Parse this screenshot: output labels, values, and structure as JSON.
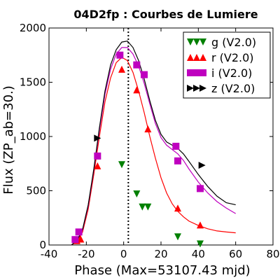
{
  "chart_data": {
    "type": "scatter",
    "title": "04D2fp : Courbes de Lumiere",
    "xlabel": "Phase (Max=53107.43 mjd)",
    "ylabel": "Flux (ZP_ab=30.)",
    "xlim": [
      -40,
      80
    ],
    "ylim": [
      0,
      2000
    ],
    "xticks": [
      "-40",
      "-20",
      "0",
      "20",
      "40",
      "60",
      "80"
    ],
    "xtick_values": [
      -40,
      -20,
      0,
      20,
      40,
      60,
      80
    ],
    "yticks": [
      "0",
      "500",
      "1000",
      "1500",
      "2000"
    ],
    "ytick_values": [
      0,
      500,
      1000,
      1500,
      2000
    ],
    "grid": false,
    "legend_position": "top-right",
    "max_line_x": 2.5,
    "series": [
      {
        "name": "g (V2.0)",
        "marker": "triangle-down",
        "color": "#008000",
        "points": [
          [
            -1,
            740
          ],
          [
            7,
            470
          ],
          [
            10,
            350
          ],
          [
            13,
            350
          ],
          [
            29,
            75
          ],
          [
            41,
            10
          ]
        ],
        "curve": []
      },
      {
        "name": "r (V2.0)",
        "marker": "triangle-up",
        "color": "#ff0000",
        "points": [
          [
            -25,
            40
          ],
          [
            -23,
            55
          ],
          [
            -14,
            730
          ],
          [
            -1,
            1620
          ],
          [
            7,
            1430
          ],
          [
            13,
            1070
          ],
          [
            29,
            340
          ],
          [
            41,
            185
          ]
        ],
        "curve": [
          [
            -28,
            0
          ],
          [
            -25,
            30
          ],
          [
            -22,
            120
          ],
          [
            -19,
            330
          ],
          [
            -16,
            650
          ],
          [
            -13,
            1000
          ],
          [
            -10,
            1320
          ],
          [
            -7,
            1540
          ],
          [
            -4,
            1680
          ],
          [
            -1,
            1730
          ],
          [
            2,
            1700
          ],
          [
            5,
            1590
          ],
          [
            8,
            1420
          ],
          [
            11,
            1220
          ],
          [
            14,
            1000
          ],
          [
            17,
            800
          ],
          [
            20,
            620
          ],
          [
            23,
            480
          ],
          [
            26,
            380
          ],
          [
            29,
            310
          ],
          [
            32,
            260
          ],
          [
            35,
            220
          ],
          [
            40,
            180
          ],
          [
            45,
            150
          ],
          [
            50,
            130
          ],
          [
            55,
            120
          ],
          [
            60,
            112
          ]
        ]
      },
      {
        "name": "i (V2.0)",
        "marker": "square",
        "color": "#bf00bf",
        "points": [
          [
            -26,
            50
          ],
          [
            -24,
            120
          ],
          [
            -14,
            820
          ],
          [
            -2,
            1750
          ],
          [
            7,
            1660
          ],
          [
            11,
            1570
          ],
          [
            28,
            910
          ],
          [
            29,
            775
          ],
          [
            41,
            520
          ]
        ],
        "curve": [
          [
            -28,
            0
          ],
          [
            -25,
            40
          ],
          [
            -22,
            140
          ],
          [
            -19,
            360
          ],
          [
            -16,
            690
          ],
          [
            -13,
            1060
          ],
          [
            -10,
            1390
          ],
          [
            -7,
            1620
          ],
          [
            -4,
            1760
          ],
          [
            -1,
            1820
          ],
          [
            2,
            1820
          ],
          [
            5,
            1760
          ],
          [
            8,
            1650
          ],
          [
            11,
            1490
          ],
          [
            14,
            1300
          ],
          [
            17,
            1120
          ],
          [
            20,
            990
          ],
          [
            23,
            920
          ],
          [
            26,
            880
          ],
          [
            29,
            840
          ],
          [
            32,
            780
          ],
          [
            35,
            700
          ],
          [
            40,
            580
          ],
          [
            45,
            480
          ],
          [
            50,
            400
          ],
          [
            55,
            340
          ],
          [
            60,
            290
          ]
        ]
      },
      {
        "name": "z (V2.0)",
        "marker": "triangle-right",
        "color": "#000000",
        "points": [
          [
            -14,
            985
          ],
          [
            42,
            735
          ]
        ],
        "curve": [
          [
            -28,
            0
          ],
          [
            -25,
            40
          ],
          [
            -22,
            145
          ],
          [
            -19,
            370
          ],
          [
            -16,
            700
          ],
          [
            -13,
            1080
          ],
          [
            -10,
            1420
          ],
          [
            -7,
            1660
          ],
          [
            -4,
            1800
          ],
          [
            -1,
            1870
          ],
          [
            2,
            1880
          ],
          [
            5,
            1820
          ],
          [
            8,
            1700
          ],
          [
            11,
            1530
          ],
          [
            14,
            1330
          ],
          [
            17,
            1150
          ],
          [
            20,
            1020
          ],
          [
            23,
            950
          ],
          [
            26,
            920
          ],
          [
            29,
            890
          ],
          [
            32,
            840
          ],
          [
            35,
            770
          ],
          [
            40,
            650
          ],
          [
            45,
            540
          ],
          [
            50,
            450
          ],
          [
            55,
            390
          ],
          [
            60,
            370
          ]
        ]
      }
    ]
  }
}
